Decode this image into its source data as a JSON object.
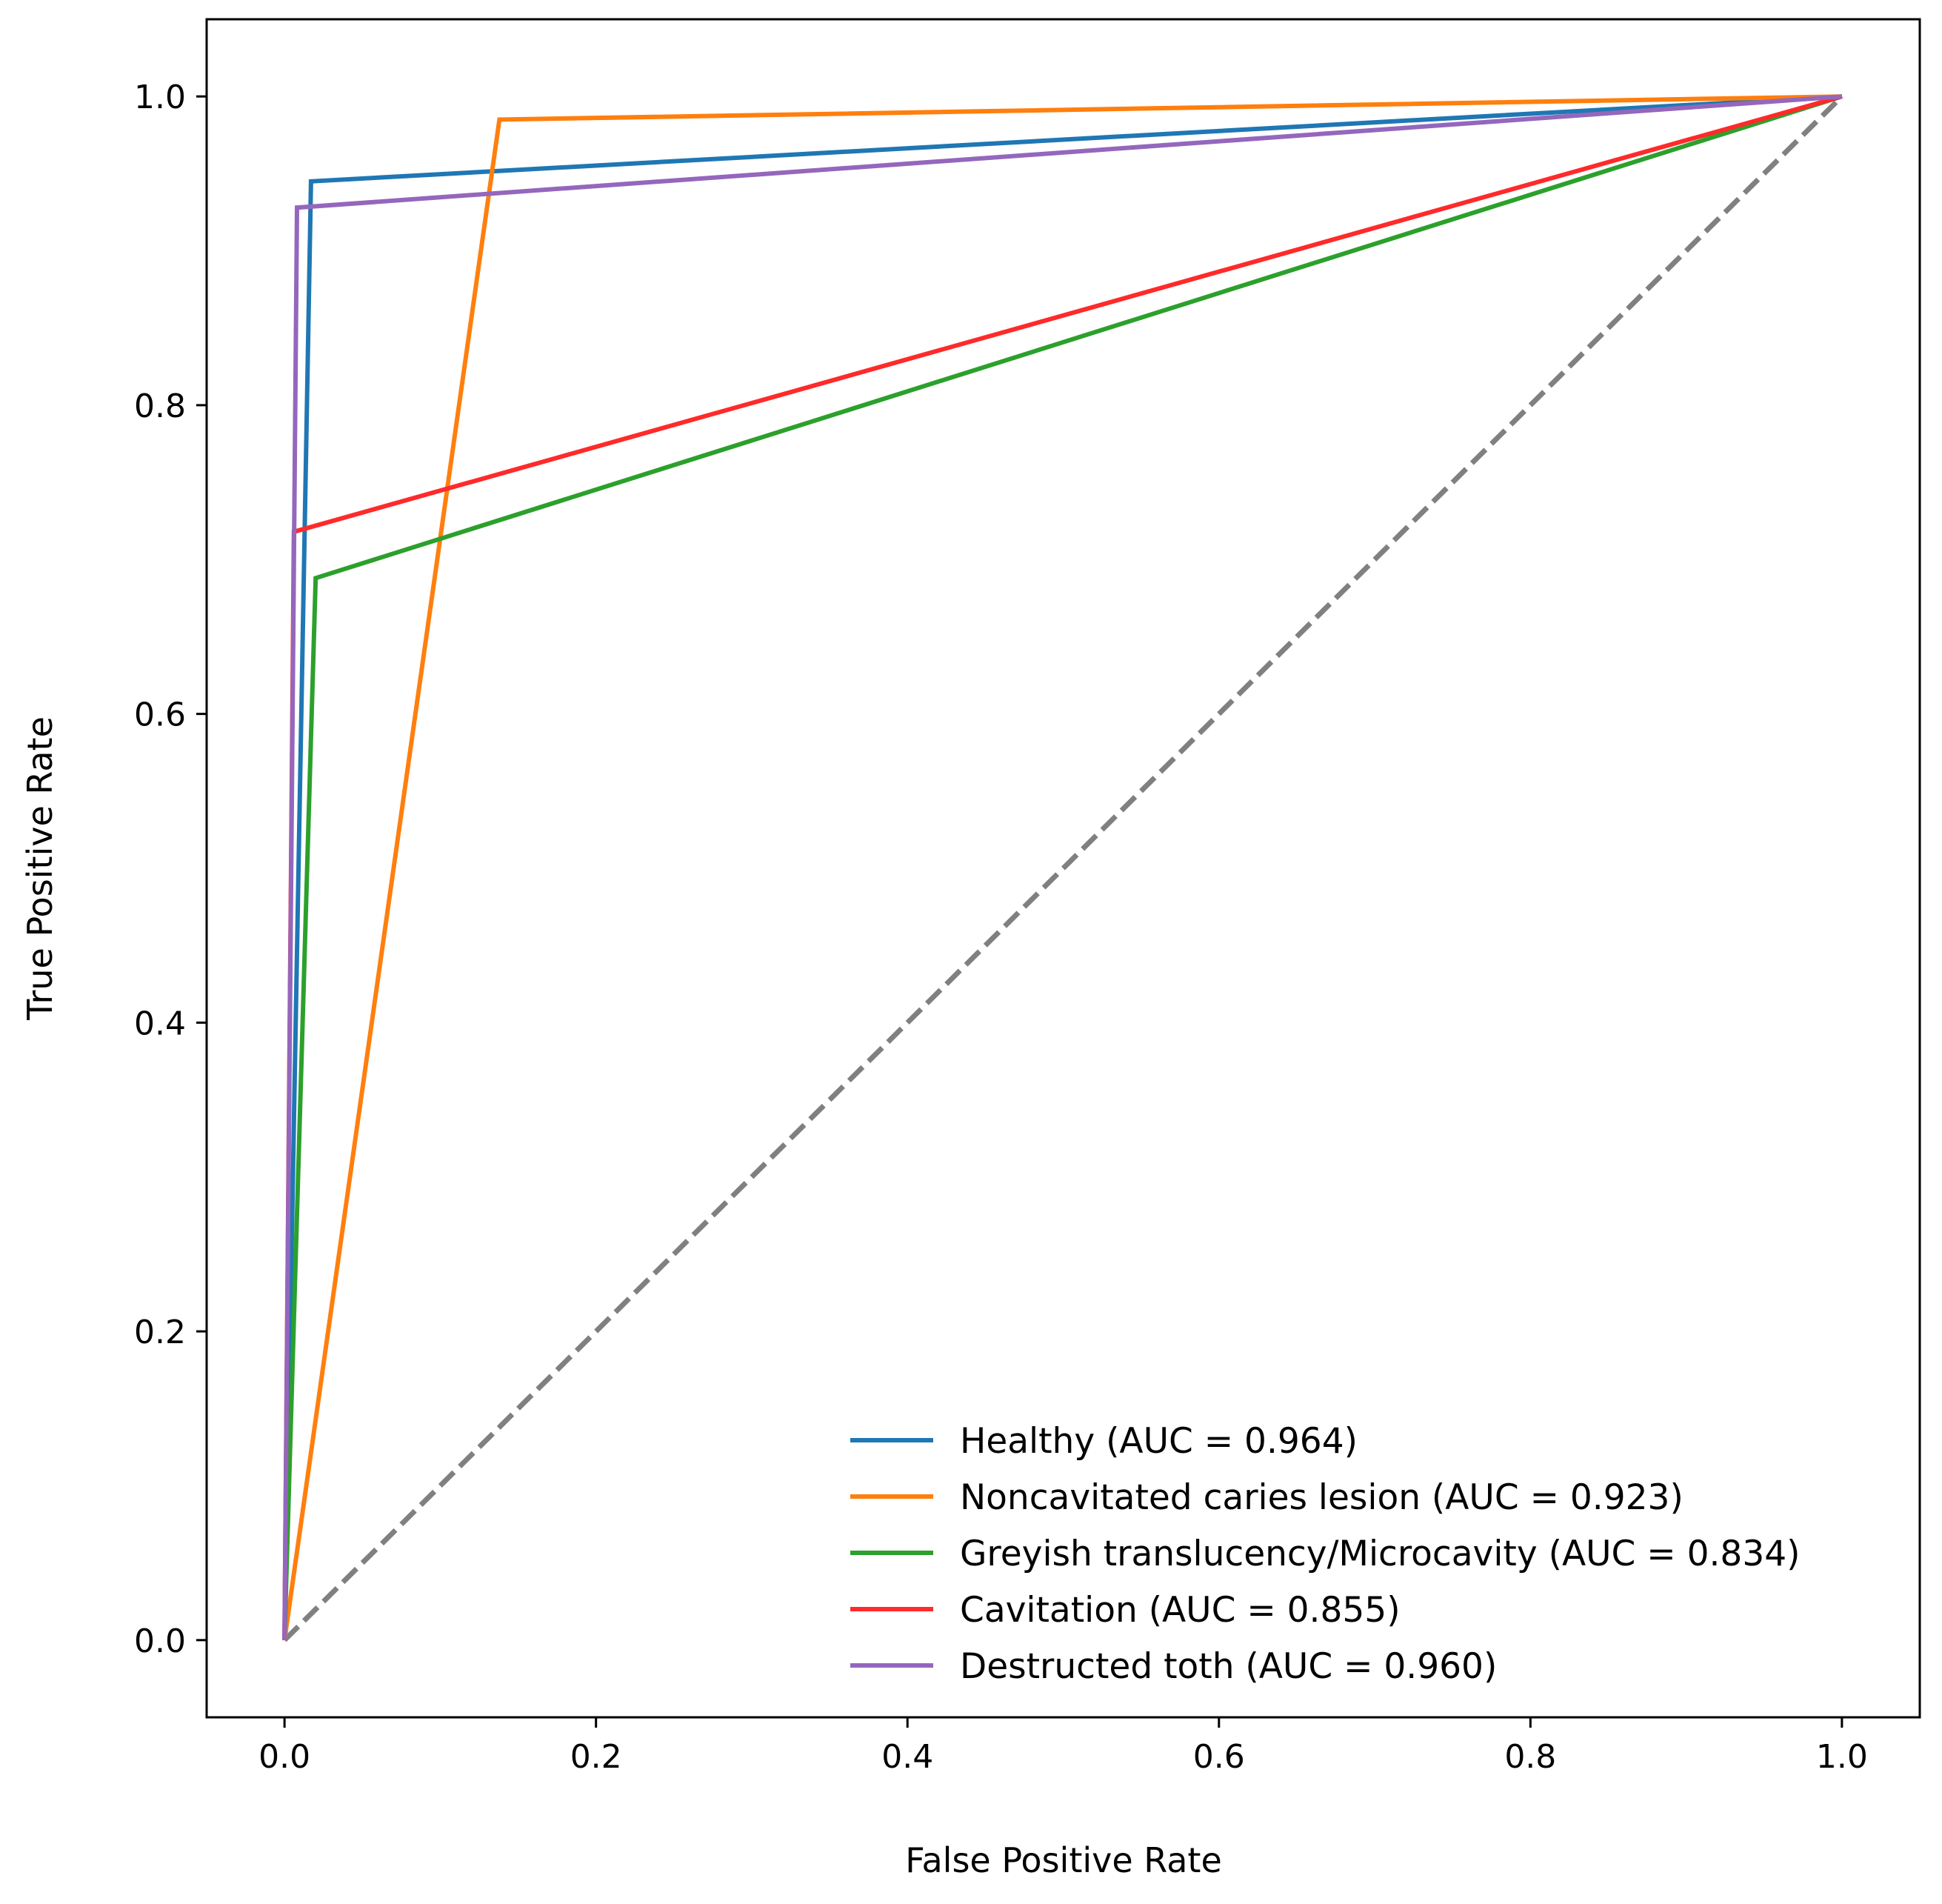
{
  "chart_data": {
    "type": "line",
    "title": "",
    "xlabel": "False Positive Rate",
    "ylabel": "True Positive Rate",
    "xlim": [
      -0.05,
      1.05
    ],
    "ylim": [
      -0.05,
      1.05
    ],
    "xticks": [
      0.0,
      0.2,
      0.4,
      0.6,
      0.8,
      1.0
    ],
    "yticks": [
      0.0,
      0.2,
      0.4,
      0.6,
      0.8,
      1.0
    ],
    "xtick_labels": [
      "0.0",
      "0.2",
      "0.4",
      "0.6",
      "0.8",
      "1.0"
    ],
    "ytick_labels": [
      "0.0",
      "0.2",
      "0.4",
      "0.6",
      "0.8",
      "1.0"
    ],
    "grid": false,
    "legend_position": "lower-right",
    "series": [
      {
        "name": "Healthy (AUC = 0.964)",
        "color": "#1f77b4",
        "x": [
          0.0,
          0.017,
          1.0
        ],
        "y": [
          0.0,
          0.945,
          1.0
        ]
      },
      {
        "name": "Noncavitated caries lesion (AUC = 0.923)",
        "color": "#ff7f0e",
        "x": [
          0.0,
          0.138,
          1.0
        ],
        "y": [
          0.0,
          0.985,
          1.0
        ]
      },
      {
        "name": "Greyish translucency/Microcavity (AUC = 0.834)",
        "color": "#2ca02c",
        "x": [
          0.0,
          0.02,
          1.0
        ],
        "y": [
          0.0,
          0.688,
          1.0
        ]
      },
      {
        "name": "Cavitation (AUC = 0.855)",
        "color": "#ff2a2a",
        "x": [
          0.0,
          0.006,
          1.0
        ],
        "y": [
          0.0,
          0.718,
          1.0
        ]
      },
      {
        "name": "Destructed toth (AUC = 0.960)",
        "color": "#9467bd",
        "x": [
          0.0,
          0.008,
          1.0
        ],
        "y": [
          0.0,
          0.928,
          1.0
        ]
      }
    ],
    "reference_line": {
      "x": [
        0.0,
        1.0
      ],
      "y": [
        0.0,
        1.0
      ],
      "color": "#808080",
      "style": "dashed"
    }
  }
}
